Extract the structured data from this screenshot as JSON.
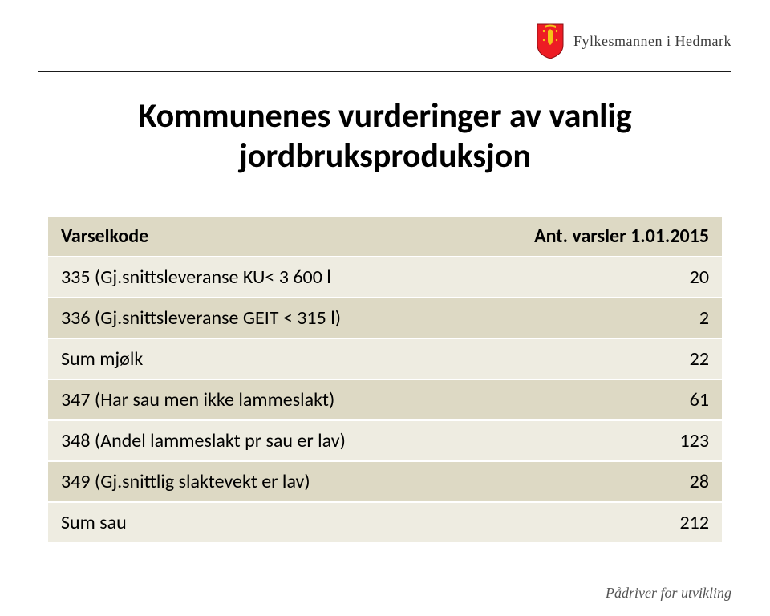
{
  "header": {
    "org": "Fylkesmannen i Hedmark"
  },
  "title": "Kommunenes vurderinger av vanlig jordbruksproduksjon",
  "table": {
    "columns": [
      "Varselkode",
      "Ant. varsler 1.01.2015"
    ],
    "rows": [
      {
        "label": "335 (Gj.snittsleveranse KU< 3 600 l",
        "value": "20",
        "shade": "light"
      },
      {
        "label": "336 (Gj.snittsleveranse GEIT < 315 l)",
        "value": "2",
        "shade": "dark"
      },
      {
        "label": "Sum mjølk",
        "value": "22",
        "shade": "light"
      },
      {
        "label": "347 (Har sau men ikke lammeslakt)",
        "value": "61",
        "shade": "dark"
      },
      {
        "label": "348 (Andel lammeslakt pr sau er lav)",
        "value": "123",
        "shade": "light"
      },
      {
        "label": "349 (Gj.snittlig slaktevekt er lav)",
        "value": "28",
        "shade": "dark"
      },
      {
        "label": "Sum sau",
        "value": "212",
        "shade": "light"
      }
    ],
    "header_bg": "#ddd9c4",
    "row_light_bg": "#eeece1",
    "row_dark_bg": "#ddd9c4",
    "row_border": "#ffffff",
    "font_size": 24
  },
  "footer": "Pådriver for utvikling",
  "colors": {
    "crest_red": "#ed1c24",
    "crest_gold": "#f5c518",
    "divider": "#1a1a1a"
  }
}
